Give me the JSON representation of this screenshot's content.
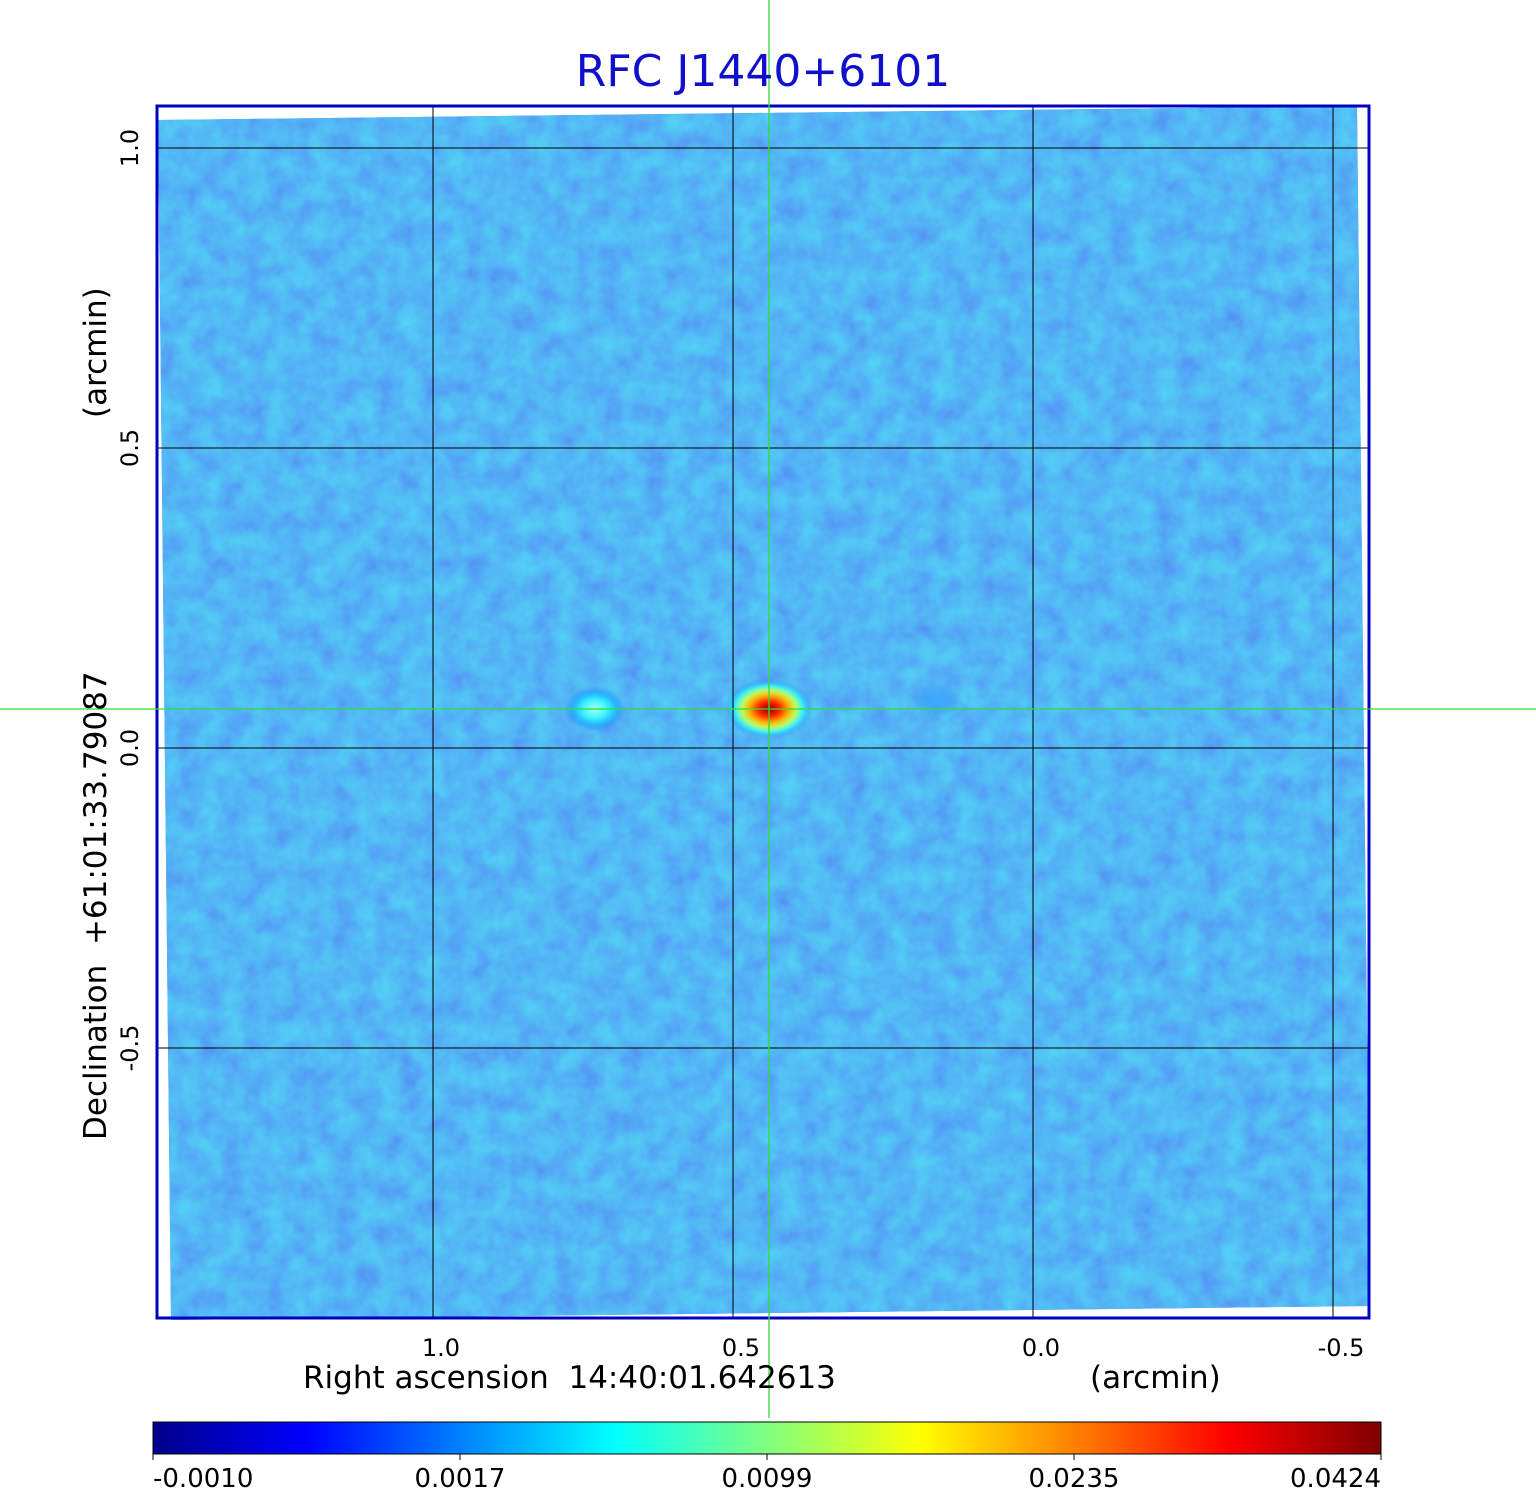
{
  "chart_data": {
    "type": "heatmap",
    "title": "RFC J1440+6101",
    "xlabel": "Right ascension  14:40:01.642613",
    "xunit": "(arcmin)",
    "ylabel": "Declination  +61:01:33.79087",
    "yunit": "(arcmin)",
    "xlim": [
      1.46,
      -0.56
    ],
    "ylim": [
      -0.95,
      1.07
    ],
    "x_ticks": [
      {
        "value": 1.0,
        "label": "1.0"
      },
      {
        "value": 0.5,
        "label": "0.5"
      },
      {
        "value": 0.0,
        "label": "0.0"
      },
      {
        "value": -0.5,
        "label": "-0.5"
      }
    ],
    "y_ticks": [
      {
        "value": 1.0,
        "label": "1.0"
      },
      {
        "value": 0.5,
        "label": "0.5"
      },
      {
        "value": 0.0,
        "label": "0.0"
      },
      {
        "value": -0.5,
        "label": "-0.5"
      }
    ],
    "grid": true,
    "crosshair": {
      "x": 0.44,
      "y": 0.065
    },
    "sources": [
      {
        "x": 0.44,
        "y": 0.065,
        "peak": 0.0424
      },
      {
        "x": 0.73,
        "y": 0.065,
        "peak": 0.006
      },
      {
        "x": 0.16,
        "y": 0.08,
        "peak": 0.0022
      }
    ],
    "colorbar": {
      "min": -0.001,
      "max": 0.0424,
      "ticks": [
        "-0.0010",
        "0.0017",
        "0.0099",
        "0.0235",
        "0.0424"
      ],
      "colors": [
        "#00008c",
        "#0000ff",
        "#0080ff",
        "#00ffff",
        "#80ff80",
        "#ffff00",
        "#ff8000",
        "#ff0000",
        "#800000"
      ]
    },
    "colors": {
      "title": "#1010cc",
      "frame": "#0000c0",
      "grid": "#000000",
      "crosshair": "#33dd33",
      "background_map": "#2c6ff0"
    }
  }
}
